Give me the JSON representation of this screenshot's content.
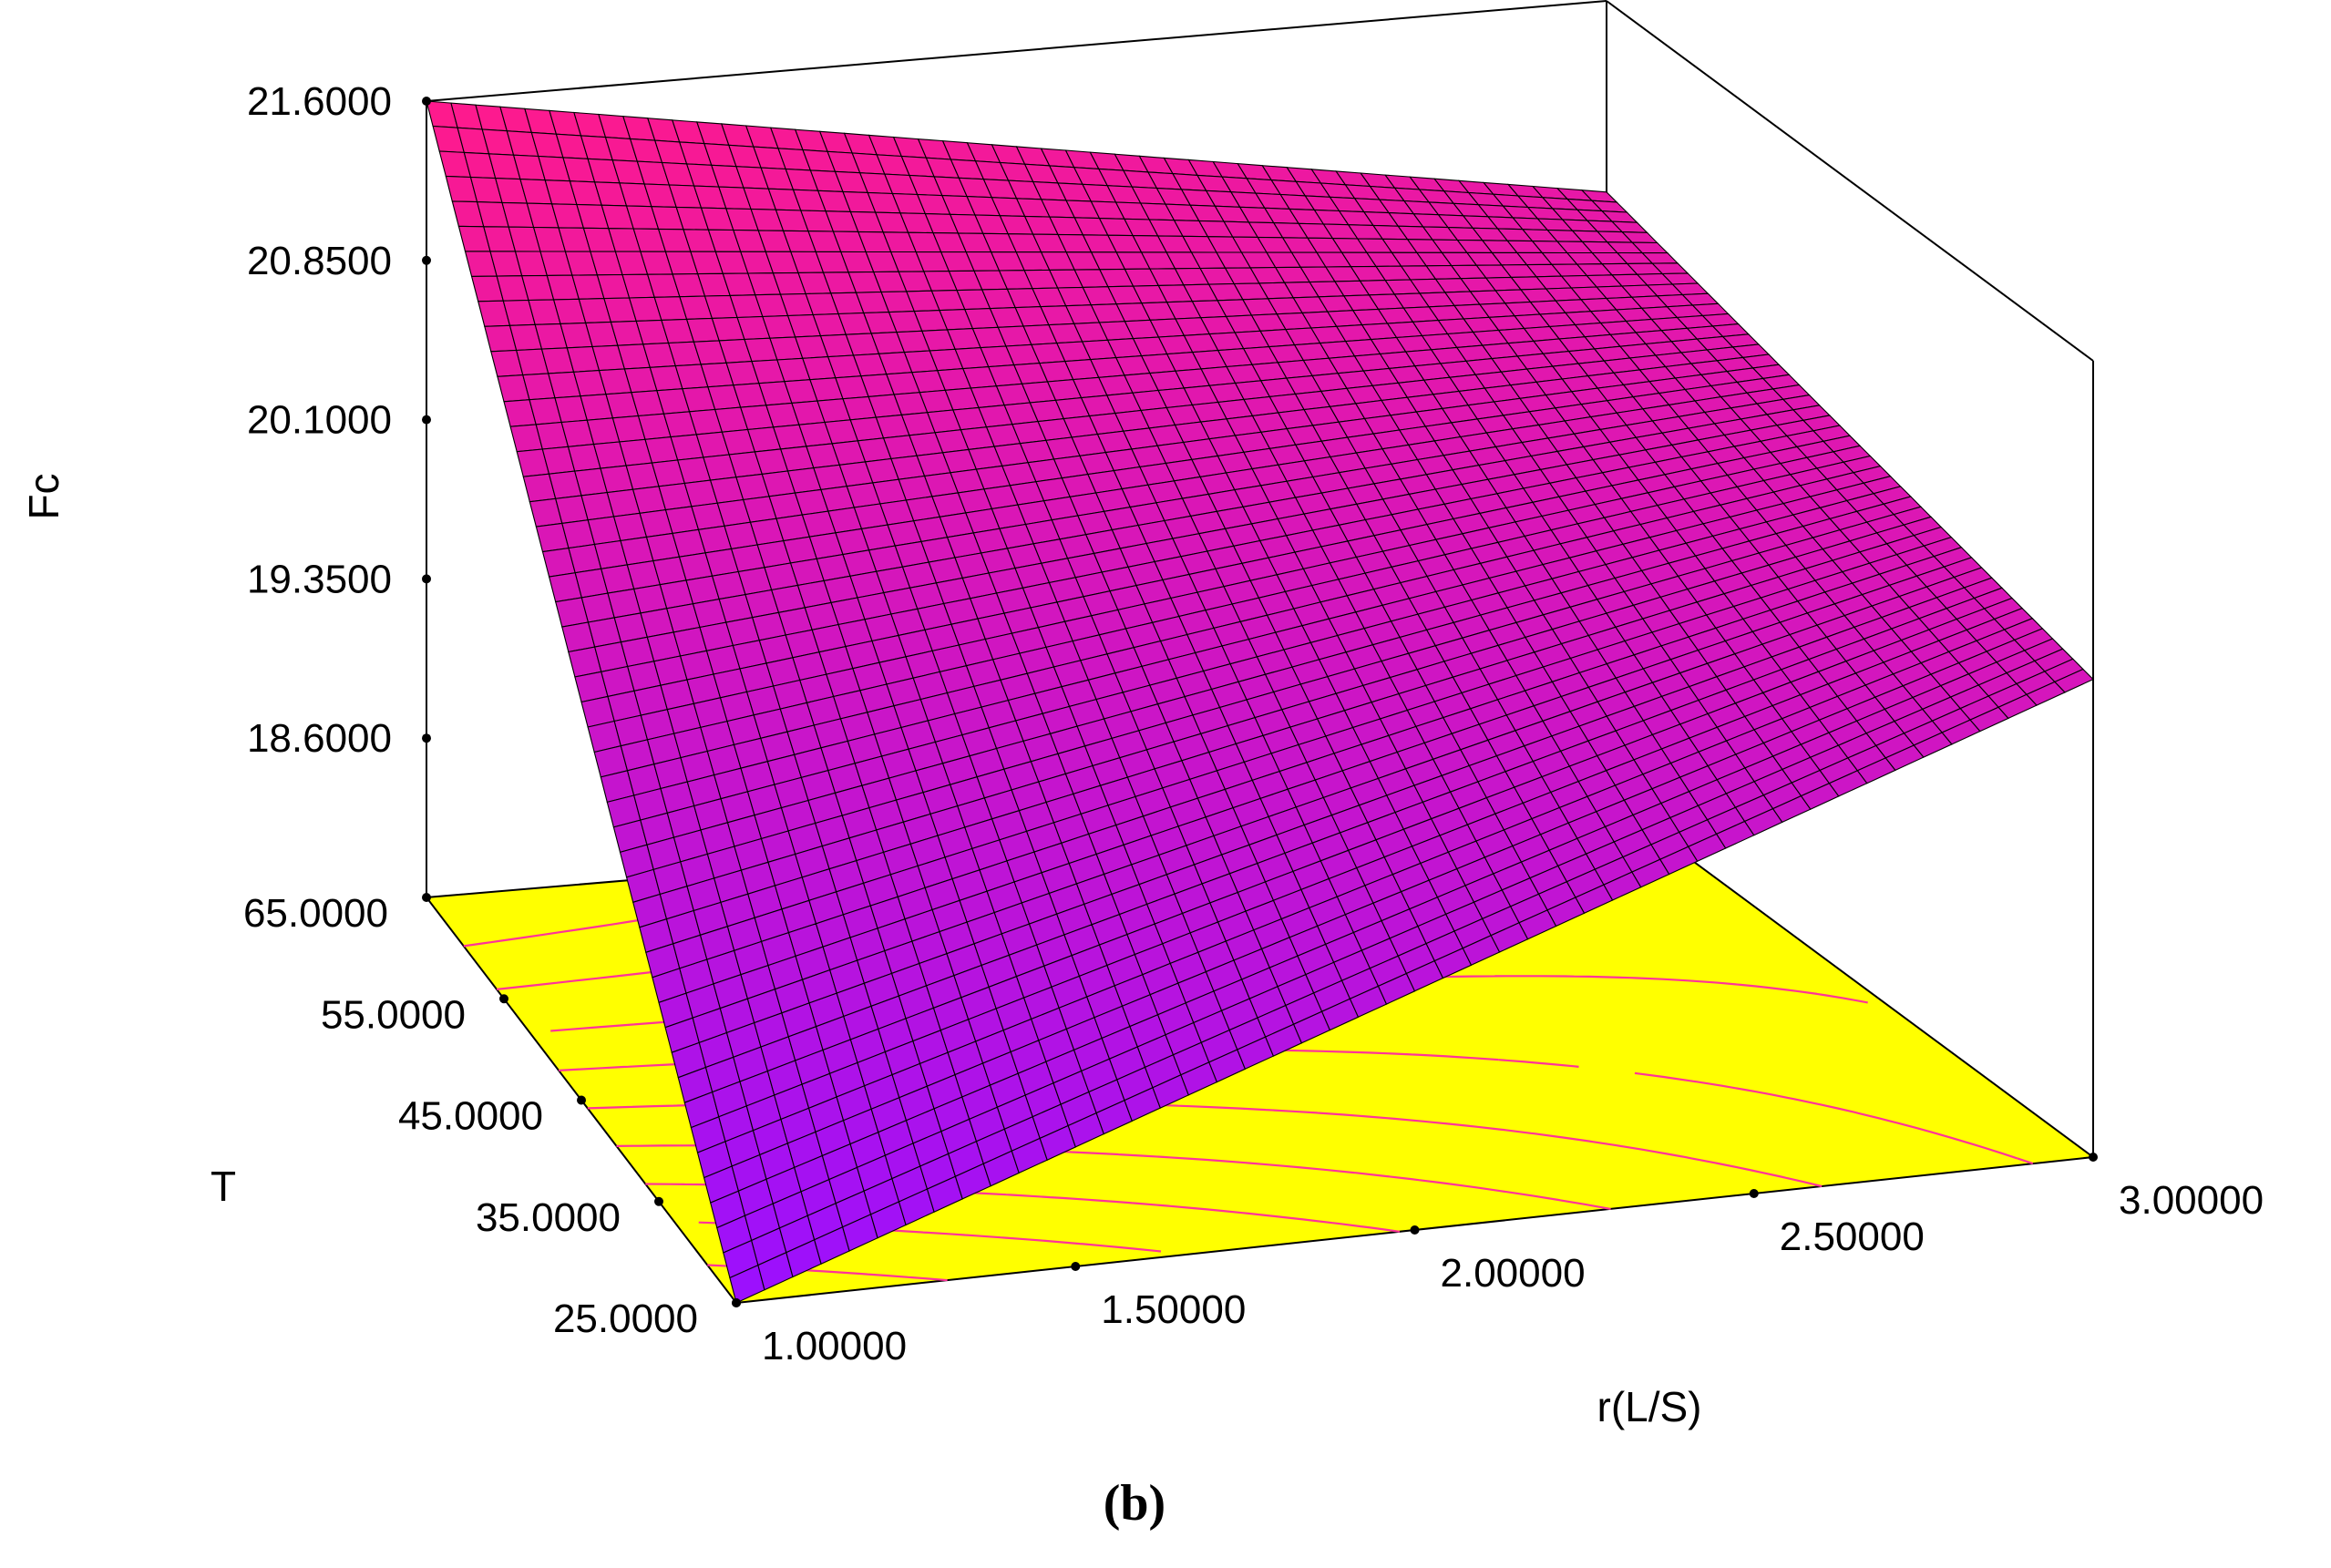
{
  "chart_data": {
    "type": "surface3d",
    "caption": "(b)",
    "zlabel": "Fc",
    "ylabel": "T",
    "xlabel": "r(L/S)",
    "x_ticks": [
      "1.00000",
      "1.50000",
      "2.00000",
      "2.50000",
      "3.00000"
    ],
    "y_ticks": [
      "25.0000",
      "35.0000",
      "45.0000",
      "55.0000",
      "65.0000"
    ],
    "z_ticks": [
      "18.6000",
      "19.3500",
      "20.1000",
      "20.8500",
      "21.6000"
    ],
    "xlim": [
      1.0,
      3.0
    ],
    "ylim": [
      25.0,
      65.0
    ],
    "zlim": [
      17.85,
      21.6
    ],
    "corner_values": [
      {
        "x": 1.0,
        "y": 25.0,
        "z": 17.85
      },
      {
        "x": 1.0,
        "y": 65.0,
        "z": 21.6
      },
      {
        "x": 3.0,
        "y": 25.0,
        "z": 20.1
      },
      {
        "x": 3.0,
        "y": 65.0,
        "z": 20.7
      }
    ],
    "contour_floor": true,
    "colors": {
      "surface_high": "#ff1a8c",
      "surface_low": "#9a10ff",
      "floor": "#ffff00",
      "contour": "#ff3399",
      "grid_line": "#000000"
    }
  }
}
